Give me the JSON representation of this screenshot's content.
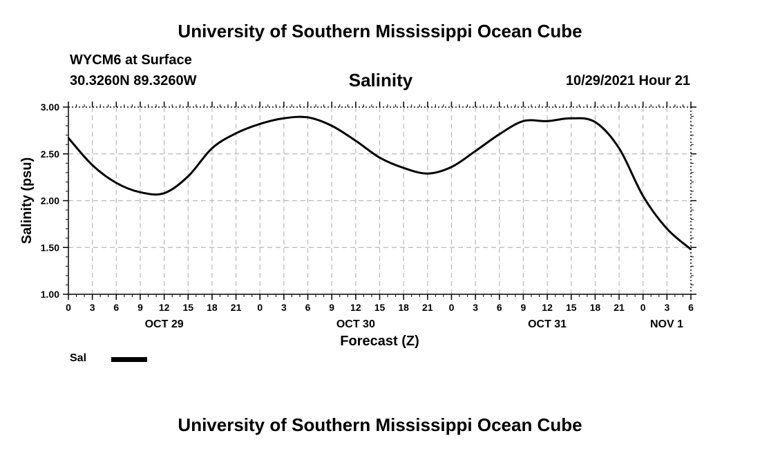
{
  "header": {
    "title": "University of Southern Mississippi Ocean Cube",
    "station": "WYCM6 at Surface",
    "coords": "30.3260N  89.3260W",
    "run_time": "10/29/2021 Hour 21"
  },
  "footer": {
    "title": "University of Southern Mississippi Ocean Cube"
  },
  "legend": {
    "label": "Sal",
    "color": "#000000"
  },
  "chart_data": {
    "type": "line",
    "title": "Salinity",
    "xlabel": "Forecast (Z)",
    "ylabel": "Salinity (psu)",
    "ylim": [
      1.0,
      3.0
    ],
    "xlim": [
      0,
      78
    ],
    "grid": true,
    "legend_position": "bottom-left",
    "y_ticks": [
      "1.00",
      "1.50",
      "2.00",
      "2.50",
      "3.00"
    ],
    "x_tick_labels": [
      "0",
      "3",
      "6",
      "9",
      "12",
      "15",
      "18",
      "21",
      "0",
      "3",
      "6",
      "9",
      "12",
      "15",
      "18",
      "21",
      "0",
      "3",
      "6",
      "9",
      "12",
      "15",
      "18",
      "21",
      "0",
      "3",
      "6"
    ],
    "date_labels": [
      {
        "hour": 12,
        "label": "OCT 29"
      },
      {
        "hour": 36,
        "label": "OCT 30"
      },
      {
        "hour": 60,
        "label": "OCT 31"
      },
      {
        "hour": 78,
        "label": "NOV 1"
      }
    ],
    "series": [
      {
        "name": "Sal",
        "x": [
          0,
          3,
          6,
          9,
          12,
          15,
          18,
          21,
          24,
          27,
          30,
          33,
          36,
          39,
          42,
          45,
          48,
          51,
          54,
          57,
          60,
          63,
          66,
          69,
          72,
          75,
          78
        ],
        "values": [
          2.67,
          2.38,
          2.19,
          2.09,
          2.08,
          2.26,
          2.56,
          2.72,
          2.82,
          2.88,
          2.89,
          2.8,
          2.64,
          2.46,
          2.35,
          2.29,
          2.36,
          2.53,
          2.71,
          2.85,
          2.85,
          2.88,
          2.84,
          2.56,
          2.05,
          1.7,
          1.48
        ]
      }
    ]
  }
}
